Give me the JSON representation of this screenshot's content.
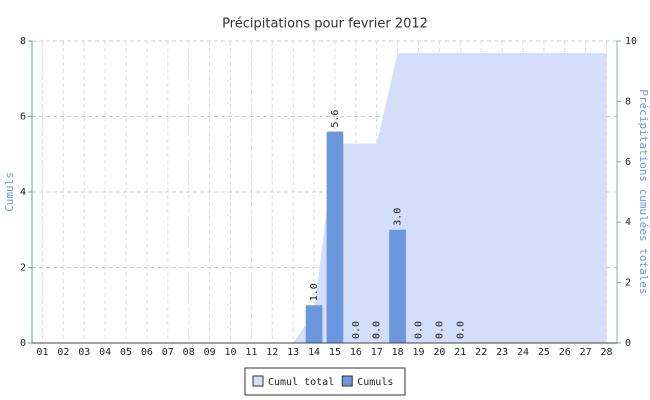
{
  "chart_data": {
    "type": "bar",
    "title": "Précipitations pour fevrier 2012",
    "ylabel": "Cumuls",
    "y2label": "Précipitations cumulées totales",
    "categories": [
      "01",
      "02",
      "03",
      "04",
      "05",
      "06",
      "07",
      "08",
      "09",
      "10",
      "11",
      "12",
      "13",
      "14",
      "15",
      "16",
      "17",
      "18",
      "19",
      "20",
      "21",
      "22",
      "23",
      "24",
      "25",
      "26",
      "27",
      "28"
    ],
    "series": [
      {
        "name": "Cumul total",
        "type": "area",
        "axis": "y2",
        "color": "#d2defa",
        "values": [
          0,
          0,
          0,
          0,
          0,
          0,
          0,
          0,
          0,
          0,
          0,
          0,
          0,
          1.0,
          6.6,
          6.6,
          6.6,
          9.6,
          9.6,
          9.6,
          9.6,
          9.6,
          9.6,
          9.6,
          9.6,
          9.6,
          9.6,
          9.6
        ]
      },
      {
        "name": "Cumuls",
        "type": "bar",
        "color": "#6b97dd",
        "values": [
          null,
          null,
          null,
          null,
          null,
          null,
          null,
          null,
          null,
          null,
          null,
          null,
          null,
          1.0,
          5.6,
          0,
          0,
          3.0,
          0,
          0,
          0,
          null,
          null,
          null,
          null,
          null,
          null,
          null
        ],
        "value_labels": [
          null,
          null,
          null,
          null,
          null,
          null,
          null,
          null,
          null,
          null,
          null,
          null,
          null,
          "1.0",
          "5.6",
          "0.0",
          "0.0",
          "3.0",
          "0.0",
          "0.0",
          "0.0",
          null,
          null,
          null,
          null,
          null,
          null,
          null
        ]
      }
    ],
    "ylim": [
      0,
      8
    ],
    "yticks": [
      0,
      2,
      4,
      6,
      8
    ],
    "y2lim": [
      0,
      10
    ],
    "y2ticks": [
      0,
      2,
      4,
      6,
      8,
      10
    ],
    "grid": true,
    "legend": "bottom"
  }
}
